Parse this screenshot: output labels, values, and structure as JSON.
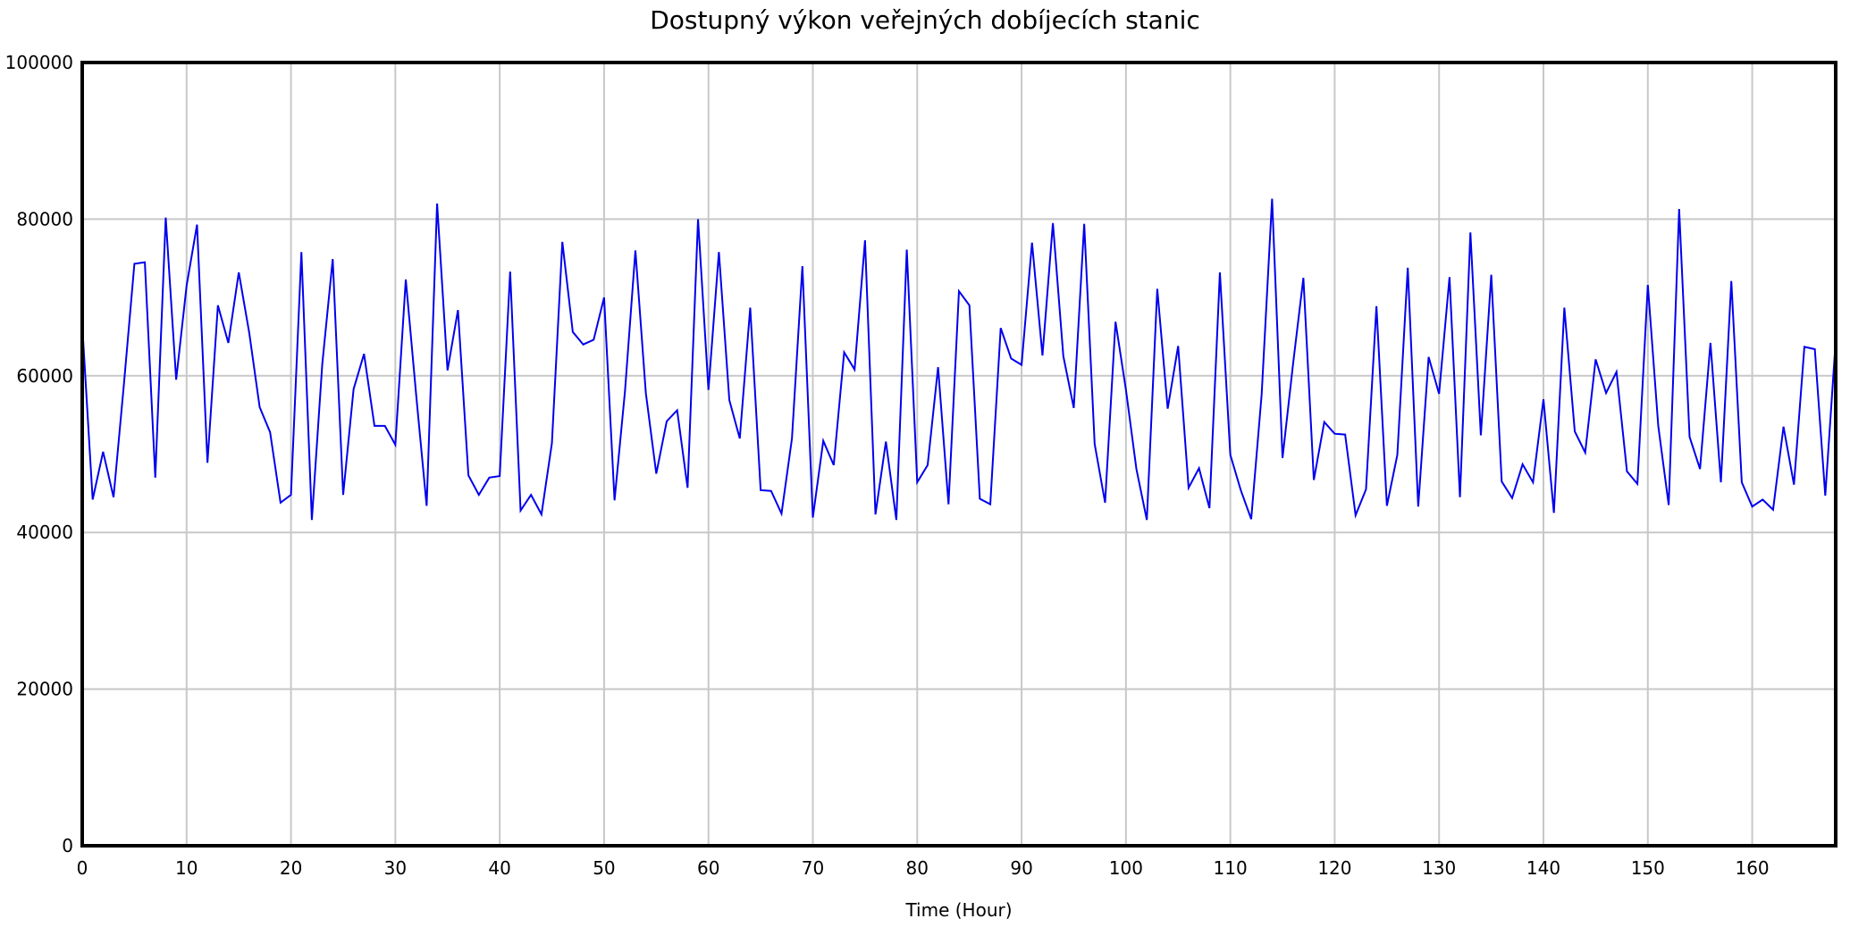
{
  "chart_data": {
    "type": "line",
    "title": "Dostupný výkon veřejných dobíjecích stanic",
    "xlabel": "Time (Hour)",
    "ylabel": "",
    "xlim": [
      0,
      168
    ],
    "ylim": [
      0,
      100000
    ],
    "x_ticks": [
      0,
      10,
      20,
      30,
      40,
      50,
      60,
      70,
      80,
      90,
      100,
      110,
      120,
      130,
      140,
      150,
      160
    ],
    "y_ticks": [
      0,
      20000,
      40000,
      60000,
      80000,
      100000
    ],
    "grid": true,
    "line_color": "#0000ee",
    "series": [
      {
        "x_start": 0,
        "x_step": 1,
        "values": [
          66500,
          44200,
          50300,
          44500,
          59000,
          74300,
          74500,
          47000,
          80200,
          59500,
          71500,
          79300,
          48900,
          69000,
          64200,
          73200,
          65500,
          56000,
          52800,
          43800,
          44800,
          75800,
          41600,
          61500,
          74900,
          44800,
          58300,
          62800,
          53600,
          53600,
          51200,
          72300,
          57500,
          43400,
          82000,
          60700,
          68400,
          47300,
          44800,
          47000,
          47200,
          73300,
          42800,
          44800,
          42300,
          51400,
          77100,
          65600,
          64000,
          64600,
          70000,
          44100,
          58000,
          76000,
          57800,
          47500,
          54200,
          55600,
          45700,
          80000,
          58200,
          75800,
          56900,
          52000,
          68700,
          45400,
          45300,
          42400,
          52000,
          74000,
          41900,
          51700,
          48600,
          63000,
          60800,
          77300,
          42300,
          51600,
          41600,
          76100,
          46400,
          48600,
          61100,
          43600,
          70800,
          69000,
          44300,
          43600,
          66100,
          62200,
          61400,
          77000,
          62600,
          79500,
          62500,
          55900,
          79400,
          51300,
          43800,
          66900,
          58200,
          48100,
          41600,
          71100,
          55800,
          63800,
          45700,
          48200,
          43100,
          73200,
          49900,
          45400,
          41700,
          57600,
          82600,
          49500,
          61400,
          72500,
          46700,
          54100,
          52600,
          52500,
          42200,
          45500,
          68900,
          43400,
          49900,
          73800,
          43300,
          62400,
          57700,
          72600,
          44500,
          78300,
          52400,
          72900,
          46500,
          44400,
          48700,
          46400,
          57000,
          42500,
          68700,
          52900,
          50200,
          62100,
          57800,
          60500,
          47800,
          46200,
          71600,
          53600,
          43500,
          81300,
          52200,
          48100,
          64200,
          46400,
          72100,
          46400,
          43300,
          44200,
          42900,
          53500,
          46100,
          63700,
          63400,
          44700,
          64500
        ]
      }
    ]
  }
}
